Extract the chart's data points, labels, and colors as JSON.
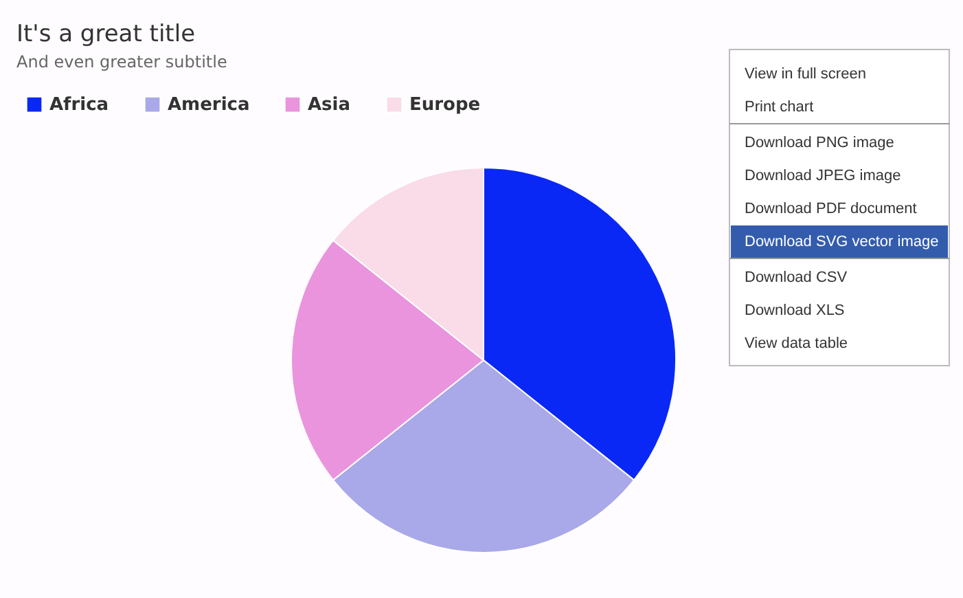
{
  "chart_data": {
    "type": "pie",
    "title": "It's a great title",
    "subtitle": "And even greater subtitle",
    "categories": [
      "Africa",
      "America",
      "Asia",
      "Europe"
    ],
    "values": [
      35.7,
      28.6,
      21.4,
      14.3
    ],
    "colors": [
      "#0a28f5",
      "#a9a8e8",
      "#ea94de",
      "#f9dce8"
    ],
    "legend": "top left",
    "annotations": [
      "View in full screen",
      "Print chart",
      "Download PNG image",
      "Download JPEG image",
      "Download PDF document",
      "Download SVG vector image",
      "Download CSV",
      "Download XLS",
      "View data table"
    ]
  }
}
